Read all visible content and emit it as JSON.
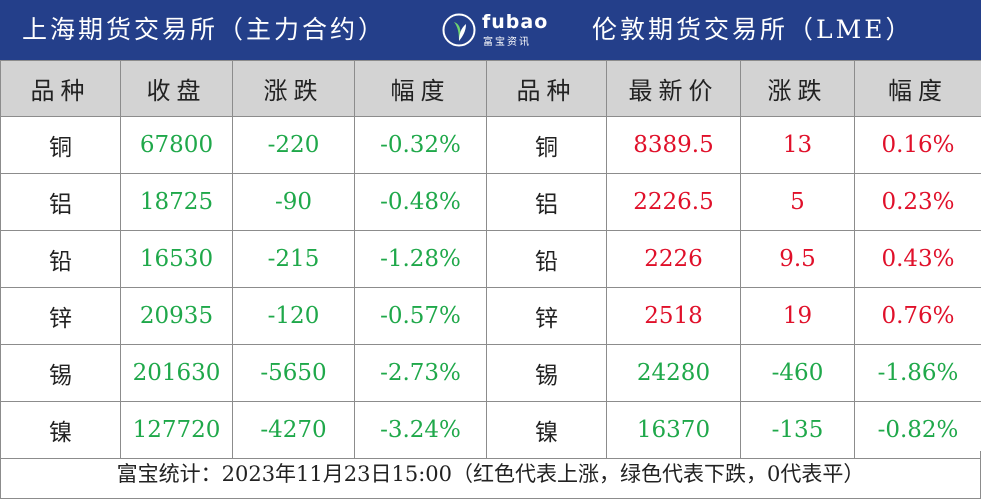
{
  "header": {
    "left_title": "上海期货交易所（主力合约）",
    "right_title": "伦敦期货交易所（LME）",
    "logo": {
      "word": "fubao",
      "sub": "富宝资讯",
      "icon": "sprout-leaf-icon"
    }
  },
  "columns": {
    "shfe": [
      "品种",
      "收盘",
      "涨跌",
      "幅度"
    ],
    "lme": [
      "品种",
      "最新价",
      "涨跌",
      "幅度"
    ]
  },
  "rows": [
    {
      "shfe": [
        "铜",
        "67800",
        "-220",
        "-0.32%"
      ],
      "lme": [
        "铜",
        "8389.5",
        "13",
        "0.16%"
      ]
    },
    {
      "shfe": [
        "铝",
        "18725",
        "-90",
        "-0.48%"
      ],
      "lme": [
        "铝",
        "2226.5",
        "5",
        "0.23%"
      ]
    },
    {
      "shfe": [
        "铅",
        "16530",
        "-215",
        "-1.28%"
      ],
      "lme": [
        "铅",
        "2226",
        "9.5",
        "0.43%"
      ]
    },
    {
      "shfe": [
        "锌",
        "20935",
        "-120",
        "-0.57%"
      ],
      "lme": [
        "锌",
        "2518",
        "19",
        "0.76%"
      ]
    },
    {
      "shfe": [
        "锡",
        "201630",
        "-5650",
        "-2.73%"
      ],
      "lme": [
        "锡",
        "24280",
        "-460",
        "-1.86%"
      ]
    },
    {
      "shfe": [
        "镍",
        "127720",
        "-4270",
        "-3.24%"
      ],
      "lme": [
        "镍",
        "16370",
        "-135",
        "-0.82%"
      ]
    }
  ],
  "footer": "富宝统计：2023年11月23日15:00（红色代表上涨，绿色代表下跌，0代表平）",
  "colors": {
    "header_bg": "#243f8a",
    "column_header_bg": "#d3d3d3",
    "up": "#e0102a",
    "down": "#1fa84a"
  }
}
